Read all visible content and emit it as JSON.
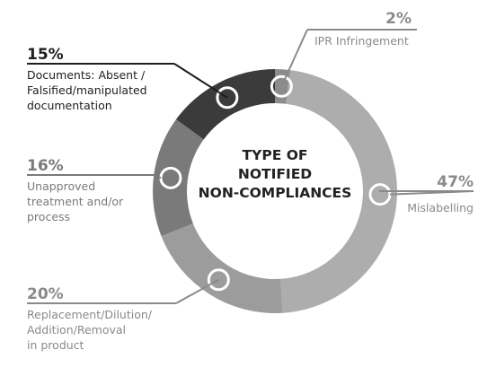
{
  "chart_data": {
    "type": "pie",
    "title": "TYPE OF NOTIFIED NON-COMPLIANCES",
    "title_lines": [
      "TYPE OF",
      "NOTIFIED",
      "NON-COMPLIANCES"
    ],
    "categories": [
      "IPR Infringement",
      "Mislabelling",
      "Replacement/Dilution/ Addition/Removal in product",
      "Unapproved treatment and/or process",
      "Documents: Absent / Falsified/manipulated documentation"
    ],
    "values": [
      2,
      47,
      20,
      16,
      15
    ],
    "value_labels": [
      "2%",
      "47%",
      "20%",
      "16%",
      "15%"
    ],
    "label_lines": [
      [
        "IPR Infringement"
      ],
      [
        "Mislabelling"
      ],
      [
        "Replacement/Dilution/",
        "Addition/Removal",
        "in product"
      ],
      [
        "Unapproved",
        "treatment and/or",
        "process"
      ],
      [
        "Documents: Absent /",
        "Falsified/manipulated",
        "documentation"
      ]
    ],
    "colors": [
      "#8c8c8c",
      "#adadad",
      "#9c9c9c",
      "#7a7a7a",
      "#3b3b3b"
    ],
    "label_colors": [
      "#8a8a8a",
      "#8a8a8a",
      "#8a8a8a",
      "#7a7a7a",
      "#1e1e1e"
    ],
    "style": "donut",
    "legend": "none"
  }
}
